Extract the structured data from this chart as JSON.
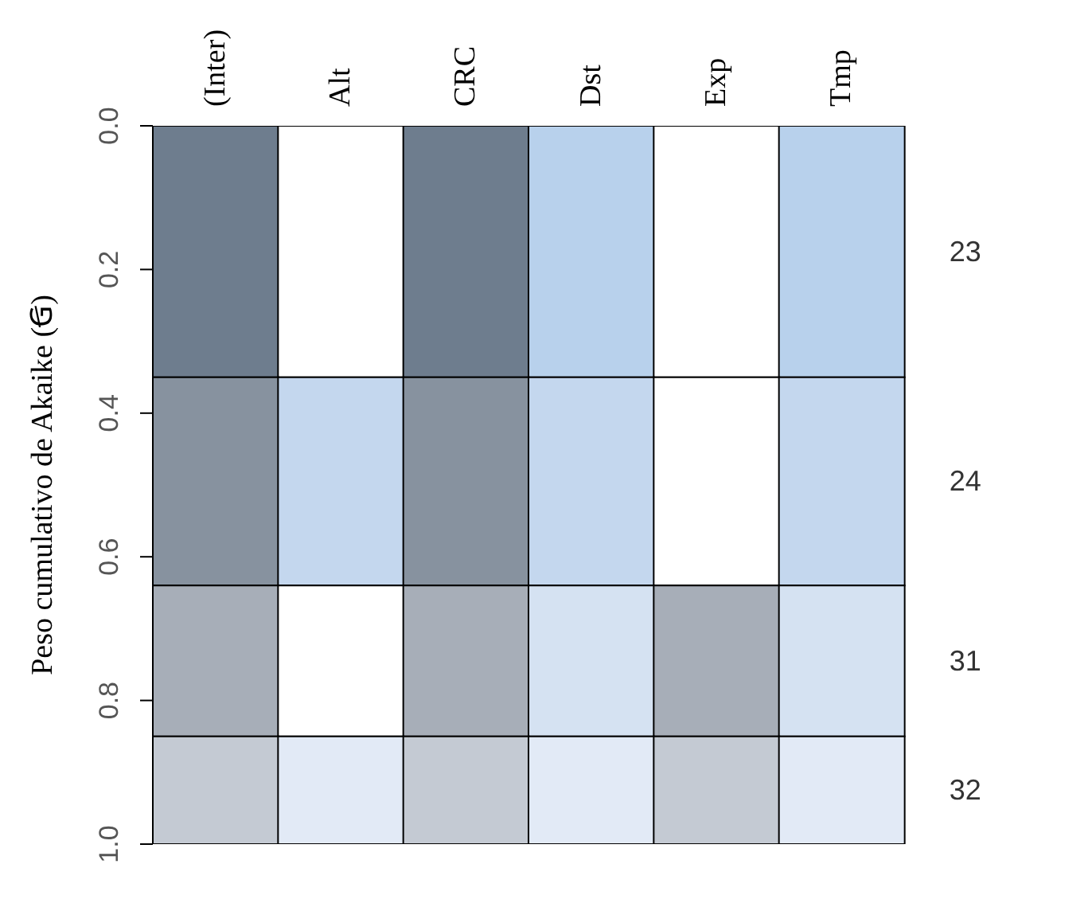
{
  "chart_data": {
    "type": "bar",
    "stacked": true,
    "ylabel": "Peso cumulativo de Akaike (Ꞡ)",
    "categories": [
      "(Inter)",
      "Alt",
      "CRC",
      "Dst",
      "Exp",
      "Tmp"
    ],
    "ylim": [
      1,
      0
    ],
    "yticks": [
      {
        "value": 0,
        "label": "0.0"
      },
      {
        "value": 0.2,
        "label": "0.2"
      },
      {
        "value": 0.4,
        "label": "0.4"
      },
      {
        "value": 0.6,
        "label": "0.6"
      },
      {
        "value": 0.8,
        "label": "0.8"
      },
      {
        "value": 1,
        "label": "1.0"
      }
    ],
    "series": [
      {
        "name": "23",
        "values": [
          0.35,
          0.35,
          0.35,
          0.35,
          0.35,
          0.35
        ],
        "colors": [
          "#6e7d8e",
          "#ffffff",
          "#6e7d8e",
          "#b8d1ec",
          "#ffffff",
          "#b8d1ec"
        ]
      },
      {
        "name": "24",
        "values": [
          0.29,
          0.29,
          0.29,
          0.29,
          0.29,
          0.29
        ],
        "colors": [
          "#87929f",
          "#c4d7ee",
          "#87929f",
          "#c4d7ee",
          "#ffffff",
          "#c4d7ee"
        ]
      },
      {
        "name": "31",
        "values": [
          0.21,
          0.21,
          0.21,
          0.21,
          0.21,
          0.21
        ],
        "colors": [
          "#a7aeb8",
          "#ffffff",
          "#a7aeb8",
          "#d5e2f2",
          "#a7aeb8",
          "#d5e2f2"
        ]
      },
      {
        "name": "32",
        "values": [
          0.15,
          0.15,
          0.15,
          0.15,
          0.15,
          0.15
        ],
        "colors": [
          "#c4cad3",
          "#e2eaf6",
          "#c4cad3",
          "#e2eaf6",
          "#c4cad3",
          "#e2eaf6"
        ]
      }
    ],
    "grid": false,
    "legend": false
  }
}
